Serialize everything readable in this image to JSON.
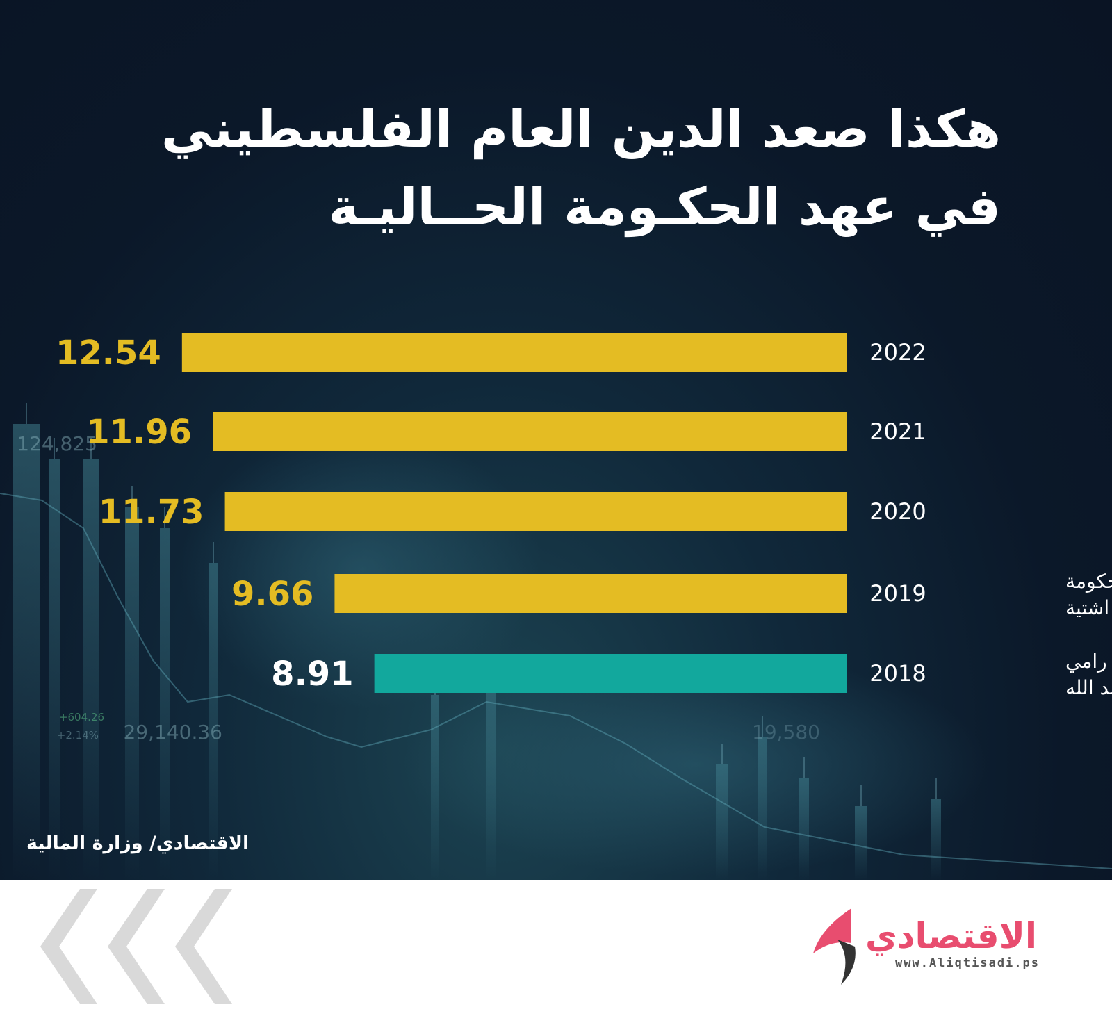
{
  "title_lines": [
    "هكذا صعد الدين العام الفلسطيني",
    "في عهد الحكـومة الحــاليـة"
  ],
  "source": "الاقتصادي/ وزارة المالية",
  "brand": {
    "name": "الاقتصادي",
    "url": "www.Aliqtisadi.ps"
  },
  "colors": {
    "bar_gold": "#e4bc23",
    "bar_teal": "#12a89d",
    "background": "#0b1829",
    "footer": "#ffffff",
    "brand": "#e84d6f"
  },
  "chart_data": {
    "type": "bar",
    "orientation": "horizontal",
    "categories": [
      "2022",
      "2021",
      "2020",
      "2019",
      "2018"
    ],
    "values": [
      12.54,
      11.96,
      11.73,
      9.66,
      8.91
    ],
    "bar_colors": [
      "#e4bc23",
      "#e4bc23",
      "#e4bc23",
      "#e4bc23",
      "#12a89d"
    ],
    "label_colors": [
      "#e4bc23",
      "#e4bc23",
      "#e4bc23",
      "#e4bc23",
      "#ffffff"
    ],
    "group_labels": [
      {
        "lines": [
          "حكومة",
          "محمد اشتية"
        ],
        "category": "2019"
      },
      {
        "lines": [
          "حكومة رامي",
          "الحمد الله"
        ],
        "category": "2018"
      }
    ],
    "title": "",
    "xlabel": "",
    "ylabel": "",
    "grid": false,
    "legend": "none"
  },
  "decor": {
    "ticker_labels": [
      "124,825",
      "29,140.36",
      "+604.26",
      "+2.14%",
      "19,580"
    ]
  }
}
